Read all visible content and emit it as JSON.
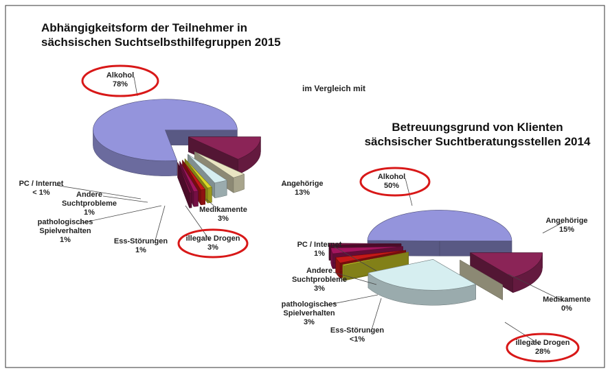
{
  "chart_data": [
    {
      "type": "pie",
      "title": "Abhängigkeitsform der Teilnehmer in\nsächsischen Suchtselbsthilfegruppen 2015",
      "categories": [
        "Angehörige",
        "Medikamente",
        "illegale Drogen",
        "Ess-Störungen",
        "pathologisches Spielverhalten",
        "Andere Suchtprobleme",
        "PC / Internet",
        "Alkohol"
      ],
      "values": [
        13,
        3,
        3,
        1,
        1,
        1,
        0.5,
        78
      ],
      "value_labels": [
        "13%",
        "3%",
        "3%",
        "1%",
        "1%",
        "1%",
        "< 1%",
        "78%"
      ],
      "colors": [
        "#8b2457",
        "#e9e5c2",
        "#d6eef0",
        "#d8d628",
        "#c41818",
        "#a3155e",
        "#7d1445",
        "#9494dc"
      ]
    },
    {
      "type": "pie",
      "title": "Betreuungsgrund von Klienten\nsächsischer Suchtberatungsstellen 2014",
      "categories": [
        "Angehörige",
        "Medikamente",
        "illegale Drogen",
        "Ess-Störungen",
        "pathologisches Spielverhalten",
        "Andere Suchtprobleme",
        "PC / Internet",
        "Alkohol"
      ],
      "values": [
        15,
        0,
        28,
        0.5,
        3,
        3,
        1,
        50
      ],
      "value_labels": [
        "15%",
        "0%",
        "28%",
        "<1%",
        "3%",
        "3%",
        "1%",
        "50%"
      ],
      "colors": [
        "#8b2457",
        "#e9e5c2",
        "#d6eef0",
        "#d8d628",
        "#c41818",
        "#a3155e",
        "#7d1445",
        "#9494dc"
      ]
    }
  ],
  "annotation": "im Vergleich mit"
}
